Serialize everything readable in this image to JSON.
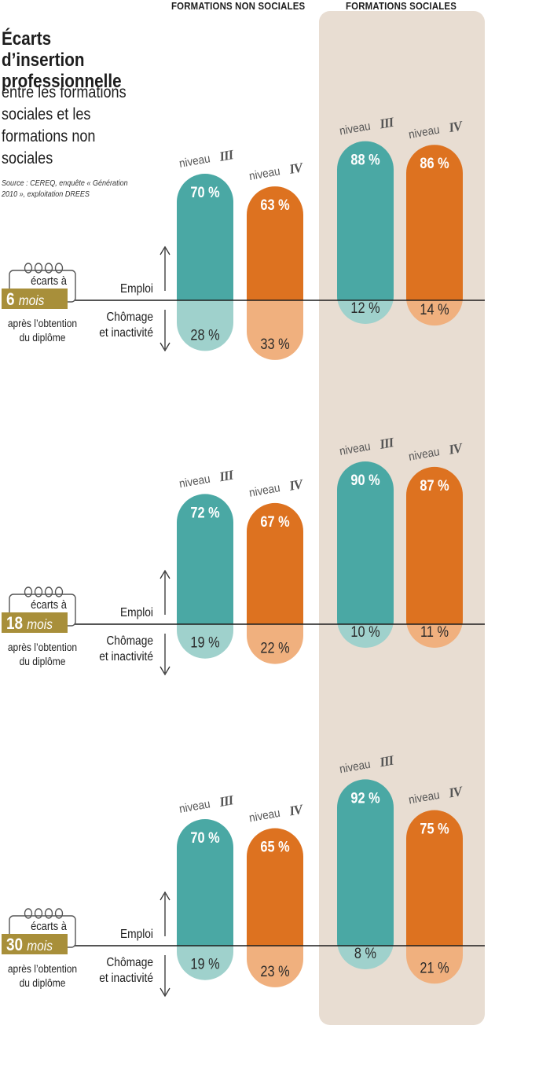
{
  "title": "Écarts d’insertion professionnelle",
  "subtitle": "entre les formations sociales et les formations non sociales",
  "source": "Source : CEREQ, enquête « Génération 2010 », exploitation DREES",
  "colors": {
    "teal": "#4aa8a4",
    "teal_light": "#9fd1cc",
    "orange": "#dd7220",
    "orange_light": "#f0b07e",
    "panel": "#e8ddd2",
    "badge": "#a88f3a"
  },
  "labels": {
    "ecarts_a": "écarts à",
    "mois": "mois",
    "apres_line1": "après l’obtention",
    "apres_line2": "du diplôme",
    "emploi": "Emploi",
    "chomage_line1": "Chômage",
    "chomage_line2": "et inactivité",
    "niveau": "niveau"
  },
  "chart_data": {
    "type": "bar",
    "groups": [
      "FORMATIONS NON SOCIALES",
      "FORMATIONS SOCIALES"
    ],
    "levels": [
      "III",
      "IV"
    ],
    "unit": "%",
    "periods": [
      {
        "months": "6",
        "bars": [
          {
            "group": "FORMATIONS NON SOCIALES",
            "level": "III",
            "emploi": 70,
            "chomage": 28
          },
          {
            "group": "FORMATIONS NON SOCIALES",
            "level": "IV",
            "emploi": 63,
            "chomage": 33
          },
          {
            "group": "FORMATIONS SOCIALES",
            "level": "III",
            "emploi": 88,
            "chomage": 12
          },
          {
            "group": "FORMATIONS SOCIALES",
            "level": "IV",
            "emploi": 86,
            "chomage": 14
          }
        ]
      },
      {
        "months": "18",
        "bars": [
          {
            "group": "FORMATIONS NON SOCIALES",
            "level": "III",
            "emploi": 72,
            "chomage": 19
          },
          {
            "group": "FORMATIONS NON SOCIALES",
            "level": "IV",
            "emploi": 67,
            "chomage": 22
          },
          {
            "group": "FORMATIONS SOCIALES",
            "level": "III",
            "emploi": 90,
            "chomage": 10
          },
          {
            "group": "FORMATIONS SOCIALES",
            "level": "IV",
            "emploi": 87,
            "chomage": 11
          }
        ]
      },
      {
        "months": "30",
        "bars": [
          {
            "group": "FORMATIONS NON SOCIALES",
            "level": "III",
            "emploi": 70,
            "chomage": 19
          },
          {
            "group": "FORMATIONS NON SOCIALES",
            "level": "IV",
            "emploi": 65,
            "chomage": 23
          },
          {
            "group": "FORMATIONS SOCIALES",
            "level": "III",
            "emploi": 92,
            "chomage": 8
          },
          {
            "group": "FORMATIONS SOCIALES",
            "level": "IV",
            "emploi": 75,
            "chomage": 21
          }
        ]
      }
    ]
  }
}
